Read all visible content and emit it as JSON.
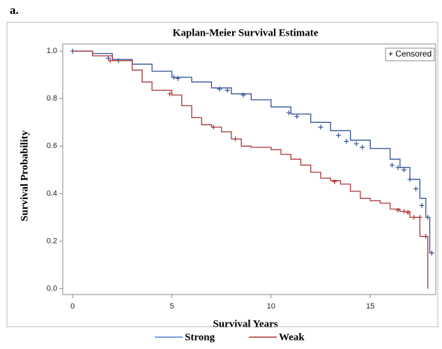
{
  "panel_label": "a.",
  "chart_data": {
    "type": "line",
    "step": "post",
    "title": "Kaplan-Meier Survival Estimate",
    "x_label": "Survival Years",
    "y_label": "Survival Probability",
    "censored_label": "+ Censored",
    "xlim": [
      -0.5,
      18.3
    ],
    "ylim": [
      -0.025,
      1.03
    ],
    "xticks": [
      0,
      5,
      10,
      15
    ],
    "yticks": [
      {
        "value": 0,
        "label": "0.0"
      },
      0.2,
      0.4,
      0.6,
      0.8,
      {
        "value": 1,
        "label": "1.0"
      }
    ],
    "series": [
      {
        "name": "Strong",
        "color": "#2f4d98",
        "legend_color": "#4a7fcb",
        "x": [
          0,
          1,
          2,
          3,
          4,
          5,
          6,
          7,
          8,
          9,
          10,
          11,
          12,
          13,
          14,
          15,
          16,
          16.5,
          17,
          17.5,
          17.8,
          18,
          18.2
        ],
        "values": [
          1.0,
          0.99,
          0.965,
          0.945,
          0.915,
          0.89,
          0.87,
          0.845,
          0.82,
          0.795,
          0.765,
          0.735,
          0.7,
          0.665,
          0.625,
          0.59,
          0.545,
          0.51,
          0.46,
          0.38,
          0.3,
          0.15,
          0.15
        ],
        "censored_x": [
          0,
          1.8,
          2.3,
          5.1,
          5.3,
          7.4,
          7.8,
          8.6,
          10.9,
          11.3,
          12.5,
          13.4,
          13.8,
          14.3,
          14.6,
          16.1,
          16.4,
          16.7,
          17.0,
          17.3,
          17.6,
          17.9,
          18.1
        ],
        "censored_y": [
          1.0,
          0.97,
          0.96,
          0.89,
          0.885,
          0.84,
          0.835,
          0.815,
          0.74,
          0.725,
          0.68,
          0.645,
          0.62,
          0.61,
          0.595,
          0.52,
          0.51,
          0.5,
          0.46,
          0.42,
          0.35,
          0.3,
          0.15
        ]
      },
      {
        "name": "Weak",
        "color": "#a83232",
        "legend_color": "#a83232",
        "x": [
          0,
          1,
          2,
          3,
          3.5,
          4,
          5,
          5.5,
          6,
          6.5,
          7,
          7.5,
          8,
          8.5,
          9,
          10,
          10.5,
          11,
          11.5,
          12,
          12.5,
          13,
          13.5,
          14,
          14.5,
          15,
          15.5,
          16,
          16.5,
          17,
          17.5,
          17.9
        ],
        "values": [
          1.0,
          0.98,
          0.96,
          0.92,
          0.87,
          0.835,
          0.815,
          0.77,
          0.72,
          0.69,
          0.68,
          0.66,
          0.63,
          0.6,
          0.595,
          0.585,
          0.565,
          0.545,
          0.52,
          0.49,
          0.465,
          0.455,
          0.44,
          0.41,
          0.38,
          0.37,
          0.36,
          0.335,
          0.325,
          0.3,
          0.22,
          0.0
        ],
        "censored_x": [
          1.9,
          4.9,
          7.1,
          8.2,
          13.2,
          16.4,
          16.7,
          16.9,
          17.2,
          17.5,
          17.8
        ],
        "censored_y": [
          0.96,
          0.82,
          0.68,
          0.63,
          0.45,
          0.33,
          0.325,
          0.32,
          0.3,
          0.3,
          0.22
        ]
      }
    ]
  }
}
